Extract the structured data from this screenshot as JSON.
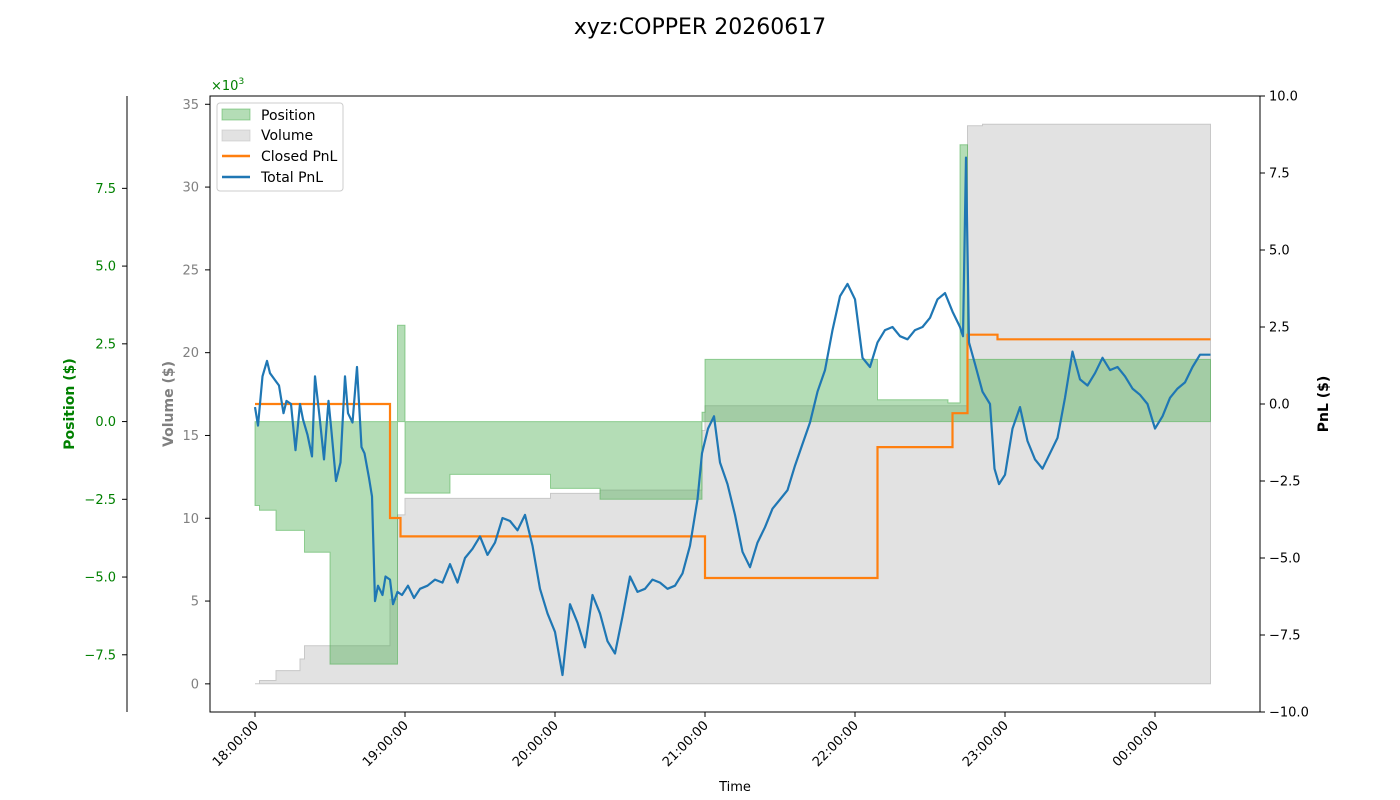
{
  "chart_data": {
    "type": "line",
    "title": "xyz:COPPER 20260617",
    "xlabel": "Time",
    "x_ticks": [
      "18:00:00",
      "19:00:00",
      "20:00:00",
      "21:00:00",
      "22:00:00",
      "23:00:00",
      "00:00:00"
    ],
    "x_range": [
      -0.3,
      6.7
    ],
    "axes": {
      "position": {
        "label": "Position ($)",
        "color": "#008000",
        "ylim": [
          -9.34,
          10.47
        ],
        "ticks": [
          "−7.5",
          "−5.0",
          "−2.5",
          "0.0",
          "2.5",
          "5.0",
          "7.5"
        ],
        "tick_values": [
          -7.5,
          -5.0,
          -2.5,
          0.0,
          2.5,
          5.0,
          7.5
        ],
        "scale_label": "×10",
        "scale_exp": "3"
      },
      "volume": {
        "label": "Volume ($)",
        "color": "#808080",
        "ylim": [
          -1.7,
          35.5
        ],
        "ticks": [
          "0",
          "5",
          "10",
          "15",
          "20",
          "25",
          "30",
          "35"
        ],
        "tick_values": [
          0,
          5,
          10,
          15,
          20,
          25,
          30,
          35
        ]
      },
      "pnl": {
        "label": "PnL ($)",
        "color": "#000000",
        "ylim": [
          -10,
          10
        ],
        "ticks": [
          "−10.0",
          "−7.5",
          "−5.0",
          "−2.5",
          "0.0",
          "2.5",
          "5.0",
          "7.5",
          "10.0"
        ],
        "tick_values": [
          -10,
          -7.5,
          -5,
          -2.5,
          0,
          2.5,
          5,
          7.5,
          10
        ]
      }
    },
    "legend": {
      "position": "upper-left",
      "entries": [
        "Position",
        "Volume",
        "Closed PnL",
        "Total PnL"
      ]
    },
    "series": [
      {
        "name": "Position",
        "kind": "step-area",
        "axis": "position",
        "color": "#4CAF50",
        "step_x": [
          0.0,
          0.03,
          0.14,
          0.33,
          0.5,
          0.95,
          1.0,
          1.3,
          1.97,
          2.3,
          2.98,
          3.0,
          4.15,
          4.62,
          4.7,
          4.75,
          6.37
        ],
        "step_y": [
          -2.7,
          -2.85,
          -3.5,
          -4.2,
          -7.8,
          3.1,
          -2.3,
          -1.7,
          -2.15,
          -2.5,
          0.3,
          2.0,
          0.7,
          0.6,
          8.9,
          2.0,
          2.0
        ]
      },
      {
        "name": "Volume",
        "kind": "step-area",
        "axis": "volume",
        "color": "#d3d3d3",
        "step_x": [
          0.0,
          0.03,
          0.14,
          0.3,
          0.33,
          0.9,
          0.95,
          1.0,
          1.97,
          2.3,
          2.98,
          3.0,
          4.75,
          4.85,
          6.37
        ],
        "step_y": [
          0.0,
          0.2,
          0.8,
          1.5,
          2.3,
          5.1,
          10.2,
          11.2,
          11.5,
          11.7,
          15.3,
          16.8,
          33.7,
          33.8,
          33.8
        ]
      },
      {
        "name": "Closed PnL",
        "kind": "step-line",
        "axis": "pnl",
        "color": "#FF7F0E",
        "step_x": [
          0.0,
          0.9,
          0.97,
          2.75,
          3.0,
          4.15,
          4.65,
          4.75,
          4.95,
          6.37
        ],
        "step_y": [
          0.0,
          -3.7,
          -4.3,
          -4.3,
          -5.65,
          -1.4,
          -0.3,
          2.25,
          2.1,
          2.1
        ]
      },
      {
        "name": "Total PnL",
        "kind": "line",
        "axis": "pnl",
        "color": "#1F77B4",
        "x": [
          0.0,
          0.02,
          0.05,
          0.08,
          0.1,
          0.13,
          0.16,
          0.19,
          0.21,
          0.24,
          0.27,
          0.3,
          0.32,
          0.35,
          0.38,
          0.4,
          0.43,
          0.46,
          0.49,
          0.51,
          0.54,
          0.57,
          0.6,
          0.62,
          0.65,
          0.68,
          0.71,
          0.73,
          0.76,
          0.78,
          0.8,
          0.82,
          0.85,
          0.87,
          0.9,
          0.92,
          0.95,
          0.98,
          1.02,
          1.06,
          1.1,
          1.15,
          1.2,
          1.25,
          1.3,
          1.35,
          1.4,
          1.45,
          1.5,
          1.55,
          1.6,
          1.65,
          1.7,
          1.75,
          1.8,
          1.85,
          1.9,
          1.95,
          2.0,
          2.05,
          2.1,
          2.15,
          2.2,
          2.25,
          2.3,
          2.35,
          2.4,
          2.45,
          2.5,
          2.55,
          2.6,
          2.65,
          2.7,
          2.75,
          2.8,
          2.85,
          2.9,
          2.95,
          2.98,
          3.02,
          3.06,
          3.1,
          3.15,
          3.2,
          3.25,
          3.3,
          3.35,
          3.4,
          3.45,
          3.5,
          3.55,
          3.6,
          3.65,
          3.7,
          3.75,
          3.8,
          3.85,
          3.9,
          3.95,
          4.0,
          4.05,
          4.1,
          4.15,
          4.2,
          4.25,
          4.3,
          4.35,
          4.4,
          4.45,
          4.5,
          4.55,
          4.6,
          4.65,
          4.7,
          4.72,
          4.74,
          4.76,
          4.8,
          4.85,
          4.9,
          4.93,
          4.96,
          5.0,
          5.05,
          5.1,
          5.15,
          5.2,
          5.25,
          5.3,
          5.35,
          5.4,
          5.45,
          5.5,
          5.55,
          5.6,
          5.65,
          5.7,
          5.75,
          5.8,
          5.85,
          5.9,
          5.95,
          6.0,
          6.05,
          6.1,
          6.15,
          6.2,
          6.25,
          6.3,
          6.37
        ],
        "y": [
          -0.1,
          -0.7,
          0.9,
          1.4,
          1.0,
          0.8,
          0.6,
          -0.3,
          0.1,
          0.0,
          -1.5,
          0.0,
          -0.5,
          -1.0,
          -1.7,
          0.9,
          -0.4,
          -1.8,
          0.1,
          -0.9,
          -2.5,
          -1.9,
          0.9,
          -0.3,
          -0.6,
          1.2,
          -1.4,
          -1.6,
          -2.4,
          -3.0,
          -6.4,
          -5.9,
          -6.2,
          -5.6,
          -5.7,
          -6.5,
          -6.1,
          -6.2,
          -5.9,
          -6.3,
          -6.0,
          -5.9,
          -5.7,
          -5.8,
          -5.2,
          -5.8,
          -5.0,
          -4.7,
          -4.3,
          -4.9,
          -4.5,
          -3.7,
          -3.8,
          -4.1,
          -3.6,
          -4.6,
          -6.0,
          -6.8,
          -7.4,
          -8.8,
          -6.5,
          -7.1,
          -7.9,
          -6.2,
          -6.8,
          -7.7,
          -8.1,
          -6.9,
          -5.6,
          -6.1,
          -6.0,
          -5.7,
          -5.8,
          -6.0,
          -5.9,
          -5.5,
          -4.6,
          -3.1,
          -1.6,
          -0.8,
          -0.4,
          -1.9,
          -2.6,
          -3.6,
          -4.8,
          -5.3,
          -4.5,
          -4.0,
          -3.4,
          -3.1,
          -2.8,
          -2.0,
          -1.3,
          -0.6,
          0.4,
          1.1,
          2.4,
          3.5,
          3.9,
          3.4,
          1.5,
          1.2,
          2.0,
          2.4,
          2.5,
          2.2,
          2.1,
          2.4,
          2.5,
          2.8,
          3.4,
          3.6,
          3.0,
          2.5,
          2.2,
          8.0,
          2.0,
          1.3,
          0.4,
          0.0,
          -2.1,
          -2.6,
          -2.3,
          -0.8,
          -0.1,
          -1.2,
          -1.8,
          -2.1,
          -1.6,
          -1.1,
          0.2,
          1.7,
          0.8,
          0.6,
          1.0,
          1.5,
          1.1,
          1.2,
          0.9,
          0.5,
          0.3,
          0.0,
          -0.8,
          -0.4,
          0.2,
          0.5,
          0.7,
          1.2,
          1.6,
          1.6
        ]
      }
    ]
  }
}
